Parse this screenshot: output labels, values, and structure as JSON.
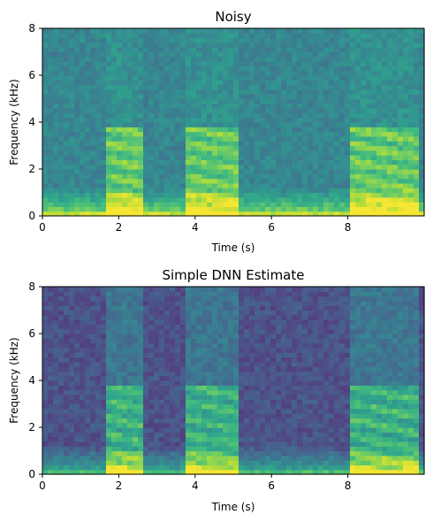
{
  "chart_data": [
    {
      "type": "heatmap",
      "title": "Noisy",
      "xlabel": "Time (s)",
      "ylabel": "Frequency (kHz)",
      "xlim": [
        0,
        10
      ],
      "ylim": [
        0,
        8
      ],
      "xticks": [
        0,
        2,
        4,
        6,
        8
      ],
      "xtick_labels": [
        "0",
        "2",
        "4",
        "6",
        "8"
      ],
      "yticks": [
        0,
        2,
        4,
        6,
        8
      ],
      "ytick_labels": [
        "0",
        "2",
        "4",
        "6",
        "8"
      ],
      "colormap": "viridis",
      "grid": false,
      "legend": "none",
      "speech_segments_s": [
        [
          1.6,
          2.6
        ],
        [
          3.8,
          5.2
        ],
        [
          8.1,
          9.9
        ]
      ]
    },
    {
      "type": "heatmap",
      "title": "Simple DNN Estimate",
      "xlabel": "Time (s)",
      "ylabel": "Frequency (kHz)",
      "xlim": [
        0,
        10
      ],
      "ylim": [
        0,
        8
      ],
      "xticks": [
        0,
        2,
        4,
        6,
        8
      ],
      "xtick_labels": [
        "0",
        "2",
        "4",
        "6",
        "8"
      ],
      "yticks": [
        0,
        2,
        4,
        6,
        8
      ],
      "ytick_labels": [
        "0",
        "2",
        "4",
        "6",
        "8"
      ],
      "colormap": "viridis",
      "grid": false,
      "legend": "none",
      "speech_segments_s": [
        [
          1.6,
          2.6
        ],
        [
          3.8,
          5.2
        ],
        [
          8.1,
          9.9
        ]
      ]
    }
  ]
}
